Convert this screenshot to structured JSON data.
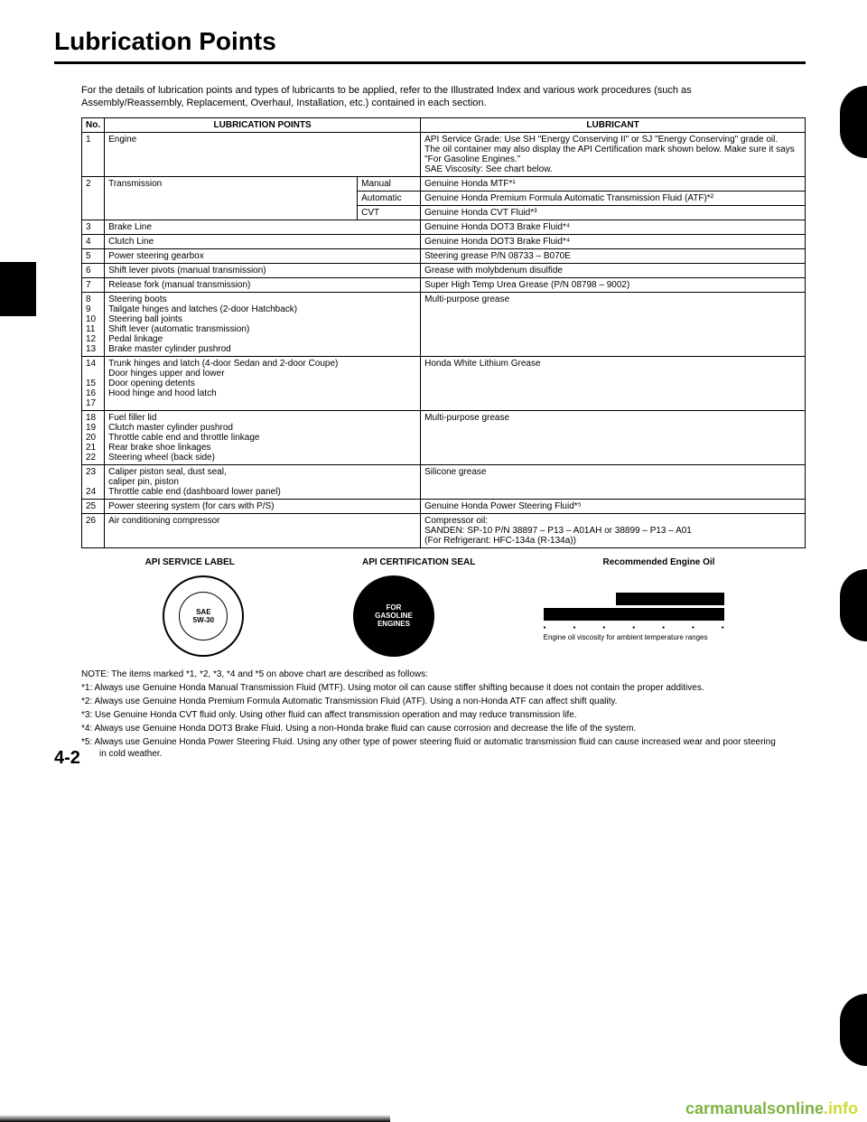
{
  "title": "Lubrication Points",
  "intro": "For the details of lubrication points and types of lubricants to be applied, refer to the Illustrated Index and various work procedures (such as Assembly/Reassembly, Replacement, Overhaul, Installation, etc.) contained in each section.",
  "headers": {
    "no": "No.",
    "points": "LUBRICATION POINTS",
    "lubricant": "LUBRICANT"
  },
  "rows": [
    {
      "no": "1",
      "points": "Engine",
      "lubricant": "API Service Grade: Use SH \"Energy Conserving II\" or SJ \"Energy Conserving\" grade oil.\nThe oil container may also display the API Certification mark shown below. Make sure it says \"For Gasoline Engines.\"\nSAE Viscosity: See chart below."
    },
    {
      "no": "2",
      "points": "Transmission",
      "sub": [
        {
          "type": "Manual",
          "lubricant": "Genuine Honda MTF*¹"
        },
        {
          "type": "Automatic",
          "lubricant": "Genuine Honda Premium Formula Automatic Transmission Fluid (ATF)*²"
        },
        {
          "type": "CVT",
          "lubricant": "Genuine Honda CVT Fluid*³"
        }
      ]
    },
    {
      "no": "3",
      "points": "Brake Line",
      "lubricant": "Genuine Honda DOT3 Brake Fluid*⁴"
    },
    {
      "no": "4",
      "points": "Clutch Line",
      "lubricant": "Genuine Honda DOT3 Brake Fluid*⁴"
    },
    {
      "no": "5",
      "points": "Power steering gearbox",
      "lubricant": "Steering grease P/N 08733 – B070E"
    },
    {
      "no": "6",
      "points": "Shift lever pivots (manual transmission)",
      "lubricant": "Grease with molybdenum disulfide"
    },
    {
      "no": "7",
      "points": "Release fork (manual transmission)",
      "lubricant": "Super High Temp Urea Grease (P/N 08798 – 9002)"
    },
    {
      "no": "8\n9\n10\n11\n12\n13",
      "points": "Steering boots\nTailgate hinges and latches (2-door Hatchback)\nSteering ball joints\nShift lever (automatic transmission)\nPedal linkage\nBrake master cylinder pushrod",
      "lubricant": "Multi-purpose grease"
    },
    {
      "no": "14\n\n15\n16\n17",
      "points": "Trunk hinges and latch (4-door Sedan and 2-door Coupe)\nDoor hinges upper and lower\nDoor opening detents\nHood hinge and hood latch",
      "lubricant": "Honda White Lithium Grease"
    },
    {
      "no": "18\n19\n20\n21\n22",
      "points": "Fuel filler lid\nClutch master cylinder pushrod\nThrottle cable end and throttle linkage\nRear brake shoe linkages\nSteering wheel (back side)",
      "lubricant": "Multi-purpose grease"
    },
    {
      "no": "23\n\n24",
      "points": "Caliper    piston seal, dust seal,\n               caliper pin, piston\nThrottle cable end (dashboard lower panel)",
      "lubricant": "Silicone grease"
    },
    {
      "no": "25",
      "points": "Power steering system (for cars with P/S)",
      "lubricant": "Genuine Honda Power Steering Fluid*⁵"
    },
    {
      "no": "26",
      "points": "Air conditioning compressor",
      "lubricant": "Compressor oil:\nSANDEN: SP-10 P/N 38897 – P13 – A01AH or 38899 – P13 – A01\n(For Refrigerant: HFC-134a (R-134a))"
    }
  ],
  "labels": {
    "api_service": "API SERVICE LABEL",
    "api_cert": "API CERTIFICATION SEAL",
    "recommended": "Recommended Engine Oil"
  },
  "seal1": {
    "line1": "SAE",
    "line2": "5W-30"
  },
  "seal2": {
    "line1": "FOR",
    "line2": "GASOLINE",
    "line3": "ENGINES"
  },
  "visc": {
    "caption": "Engine oil viscosity for ambient temperature ranges"
  },
  "notes_heading": "NOTE: The items marked *1, *2, *3, *4 and *5 on above chart are described as follows:",
  "notes": [
    "*1: Always use Genuine Honda Manual Transmission Fluid (MTF). Using motor oil can cause stiffer shifting because it does not contain the proper additives.",
    "*2: Always use Genuine Honda Premium Formula Automatic Transmission Fluid (ATF). Using a non-Honda ATF can affect shift quality.",
    "*3: Use Genuine Honda CVT fluid only. Using other fluid can affect transmission operation and may reduce transmission life.",
    "*4: Always use Genuine Honda DOT3 Brake Fluid. Using a non-Honda brake fluid can cause corrosion and decrease the life of the system.",
    "*5: Always use Genuine Honda Power Steering Fluid. Using any other type of power steering fluid or automatic transmission fluid can cause increased wear and poor steering in cold weather."
  ],
  "pageno": "4-2",
  "watermark": {
    "a": "carmanualsonline",
    "b": ".info"
  }
}
